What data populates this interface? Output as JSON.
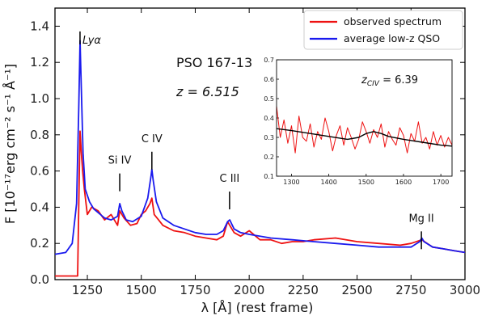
{
  "chart_data": {
    "type": "line",
    "xlabel": "λ [Å] (rest frame)",
    "ylabel": "F [10⁻¹⁷erg cm⁻² s⁻¹ Å⁻¹]",
    "xlim": [
      1100,
      3000
    ],
    "ylim": [
      0.0,
      1.5
    ],
    "x_ticks": [
      "1250",
      "1500",
      "1750",
      "2000",
      "2250",
      "2500",
      "2750",
      "3000"
    ],
    "y_ticks": [
      "0.0",
      "0.2",
      "0.4",
      "0.6",
      "0.8",
      "1.0",
      "1.2",
      "1.4"
    ],
    "grid": false,
    "legend_position": "top-right",
    "colors": {
      "observed": "#ee1111",
      "qso": "#1a1aee",
      "fit": "#000000"
    },
    "series": [
      {
        "name": "observed spectrum",
        "x": [
          1100,
          1205,
          1212,
          1216,
          1222,
          1228,
          1236,
          1250,
          1270,
          1300,
          1330,
          1360,
          1390,
          1400,
          1420,
          1450,
          1480,
          1500,
          1520,
          1540,
          1549,
          1560,
          1580,
          1600,
          1650,
          1700,
          1750,
          1800,
          1850,
          1880,
          1900,
          1910,
          1930,
          1960,
          2000,
          2050,
          2100,
          2150,
          2200,
          2250,
          2300,
          2400,
          2500,
          2600,
          2700,
          2750,
          2800,
          2850,
          2900,
          2950,
          3000
        ],
        "y": [
          0.02,
          0.02,
          0.55,
          0.82,
          0.7,
          0.6,
          0.5,
          0.36,
          0.4,
          0.38,
          0.33,
          0.36,
          0.3,
          0.38,
          0.34,
          0.3,
          0.31,
          0.36,
          0.38,
          0.42,
          0.45,
          0.36,
          0.33,
          0.3,
          0.27,
          0.26,
          0.24,
          0.23,
          0.22,
          0.24,
          0.32,
          0.3,
          0.26,
          0.24,
          0.27,
          0.22,
          0.22,
          0.2,
          0.21,
          0.21,
          0.22,
          0.23,
          0.21,
          0.2,
          0.19,
          0.2,
          0.22,
          0.18,
          0.17,
          0.16,
          0.15
        ]
      },
      {
        "name": "average low-z QSO",
        "x": [
          1100,
          1150,
          1180,
          1200,
          1210,
          1216,
          1222,
          1230,
          1240,
          1260,
          1280,
          1300,
          1330,
          1360,
          1390,
          1400,
          1410,
          1430,
          1460,
          1500,
          1530,
          1545,
          1549,
          1555,
          1570,
          1600,
          1650,
          1700,
          1750,
          1800,
          1850,
          1880,
          1900,
          1910,
          1930,
          1960,
          2000,
          2100,
          2200,
          2300,
          2400,
          2500,
          2600,
          2700,
          2750,
          2790,
          2800,
          2810,
          2850,
          2900,
          2950,
          3000
        ],
        "y": [
          0.14,
          0.15,
          0.2,
          0.42,
          0.95,
          1.32,
          1.05,
          0.7,
          0.5,
          0.43,
          0.39,
          0.37,
          0.34,
          0.33,
          0.35,
          0.42,
          0.38,
          0.33,
          0.32,
          0.35,
          0.45,
          0.57,
          0.61,
          0.55,
          0.43,
          0.34,
          0.3,
          0.28,
          0.26,
          0.25,
          0.25,
          0.27,
          0.32,
          0.33,
          0.28,
          0.26,
          0.25,
          0.23,
          0.22,
          0.21,
          0.2,
          0.19,
          0.18,
          0.18,
          0.18,
          0.21,
          0.23,
          0.21,
          0.18,
          0.17,
          0.16,
          0.15
        ]
      }
    ],
    "line_labels": [
      {
        "text": "Lyα",
        "x": 1216,
        "y": 1.38
      },
      {
        "text": "Si IV",
        "x": 1400,
        "y": 0.64
      },
      {
        "text": "C IV",
        "x": 1549,
        "y": 0.76
      },
      {
        "text": "C III",
        "x": 1909,
        "y": 0.54
      },
      {
        "text": "Mg II",
        "x": 2798,
        "y": 0.32
      }
    ],
    "annotations": {
      "object": "PSO 167-13",
      "redshift": "z = 6.515"
    },
    "inset": {
      "title": "z",
      "title_subscript": "CIV",
      "title_value": " = 6.39",
      "xlim": [
        1260,
        1730
      ],
      "ylim": [
        0.1,
        0.7
      ],
      "x_ticks": [
        "1300",
        "1400",
        "1500",
        "1600",
        "1700"
      ],
      "y_ticks": [
        "0.1",
        "0.2",
        "0.3",
        "0.4",
        "0.5",
        "0.6",
        "0.7"
      ],
      "series": [
        {
          "name": "",
          "x": [
            1260,
            1270,
            1280,
            1290,
            1300,
            1310,
            1320,
            1330,
            1340,
            1350,
            1360,
            1370,
            1380,
            1390,
            1400,
            1410,
            1420,
            1430,
            1440,
            1450,
            1460,
            1470,
            1480,
            1490,
            1500,
            1510,
            1520,
            1530,
            1540,
            1550,
            1560,
            1570,
            1580,
            1590,
            1600,
            1610,
            1620,
            1630,
            1640,
            1650,
            1660,
            1670,
            1680,
            1690,
            1700,
            1710,
            1720,
            1730
          ],
          "y": [
            0.46,
            0.3,
            0.39,
            0.27,
            0.36,
            0.22,
            0.41,
            0.3,
            0.28,
            0.37,
            0.25,
            0.33,
            0.29,
            0.4,
            0.33,
            0.23,
            0.31,
            0.36,
            0.26,
            0.35,
            0.3,
            0.24,
            0.29,
            0.38,
            0.33,
            0.27,
            0.34,
            0.3,
            0.37,
            0.25,
            0.33,
            0.29,
            0.26,
            0.35,
            0.31,
            0.22,
            0.32,
            0.28,
            0.38,
            0.27,
            0.3,
            0.24,
            0.33,
            0.26,
            0.31,
            0.25,
            0.3,
            0.26
          ]
        },
        {
          "name": "",
          "x": [
            1260,
            1300,
            1350,
            1400,
            1450,
            1480,
            1500,
            1520,
            1540,
            1560,
            1600,
            1650,
            1700,
            1730
          ],
          "y": [
            0.345,
            0.335,
            0.32,
            0.305,
            0.29,
            0.3,
            0.32,
            0.33,
            0.32,
            0.305,
            0.29,
            0.275,
            0.26,
            0.255
          ]
        }
      ]
    }
  }
}
